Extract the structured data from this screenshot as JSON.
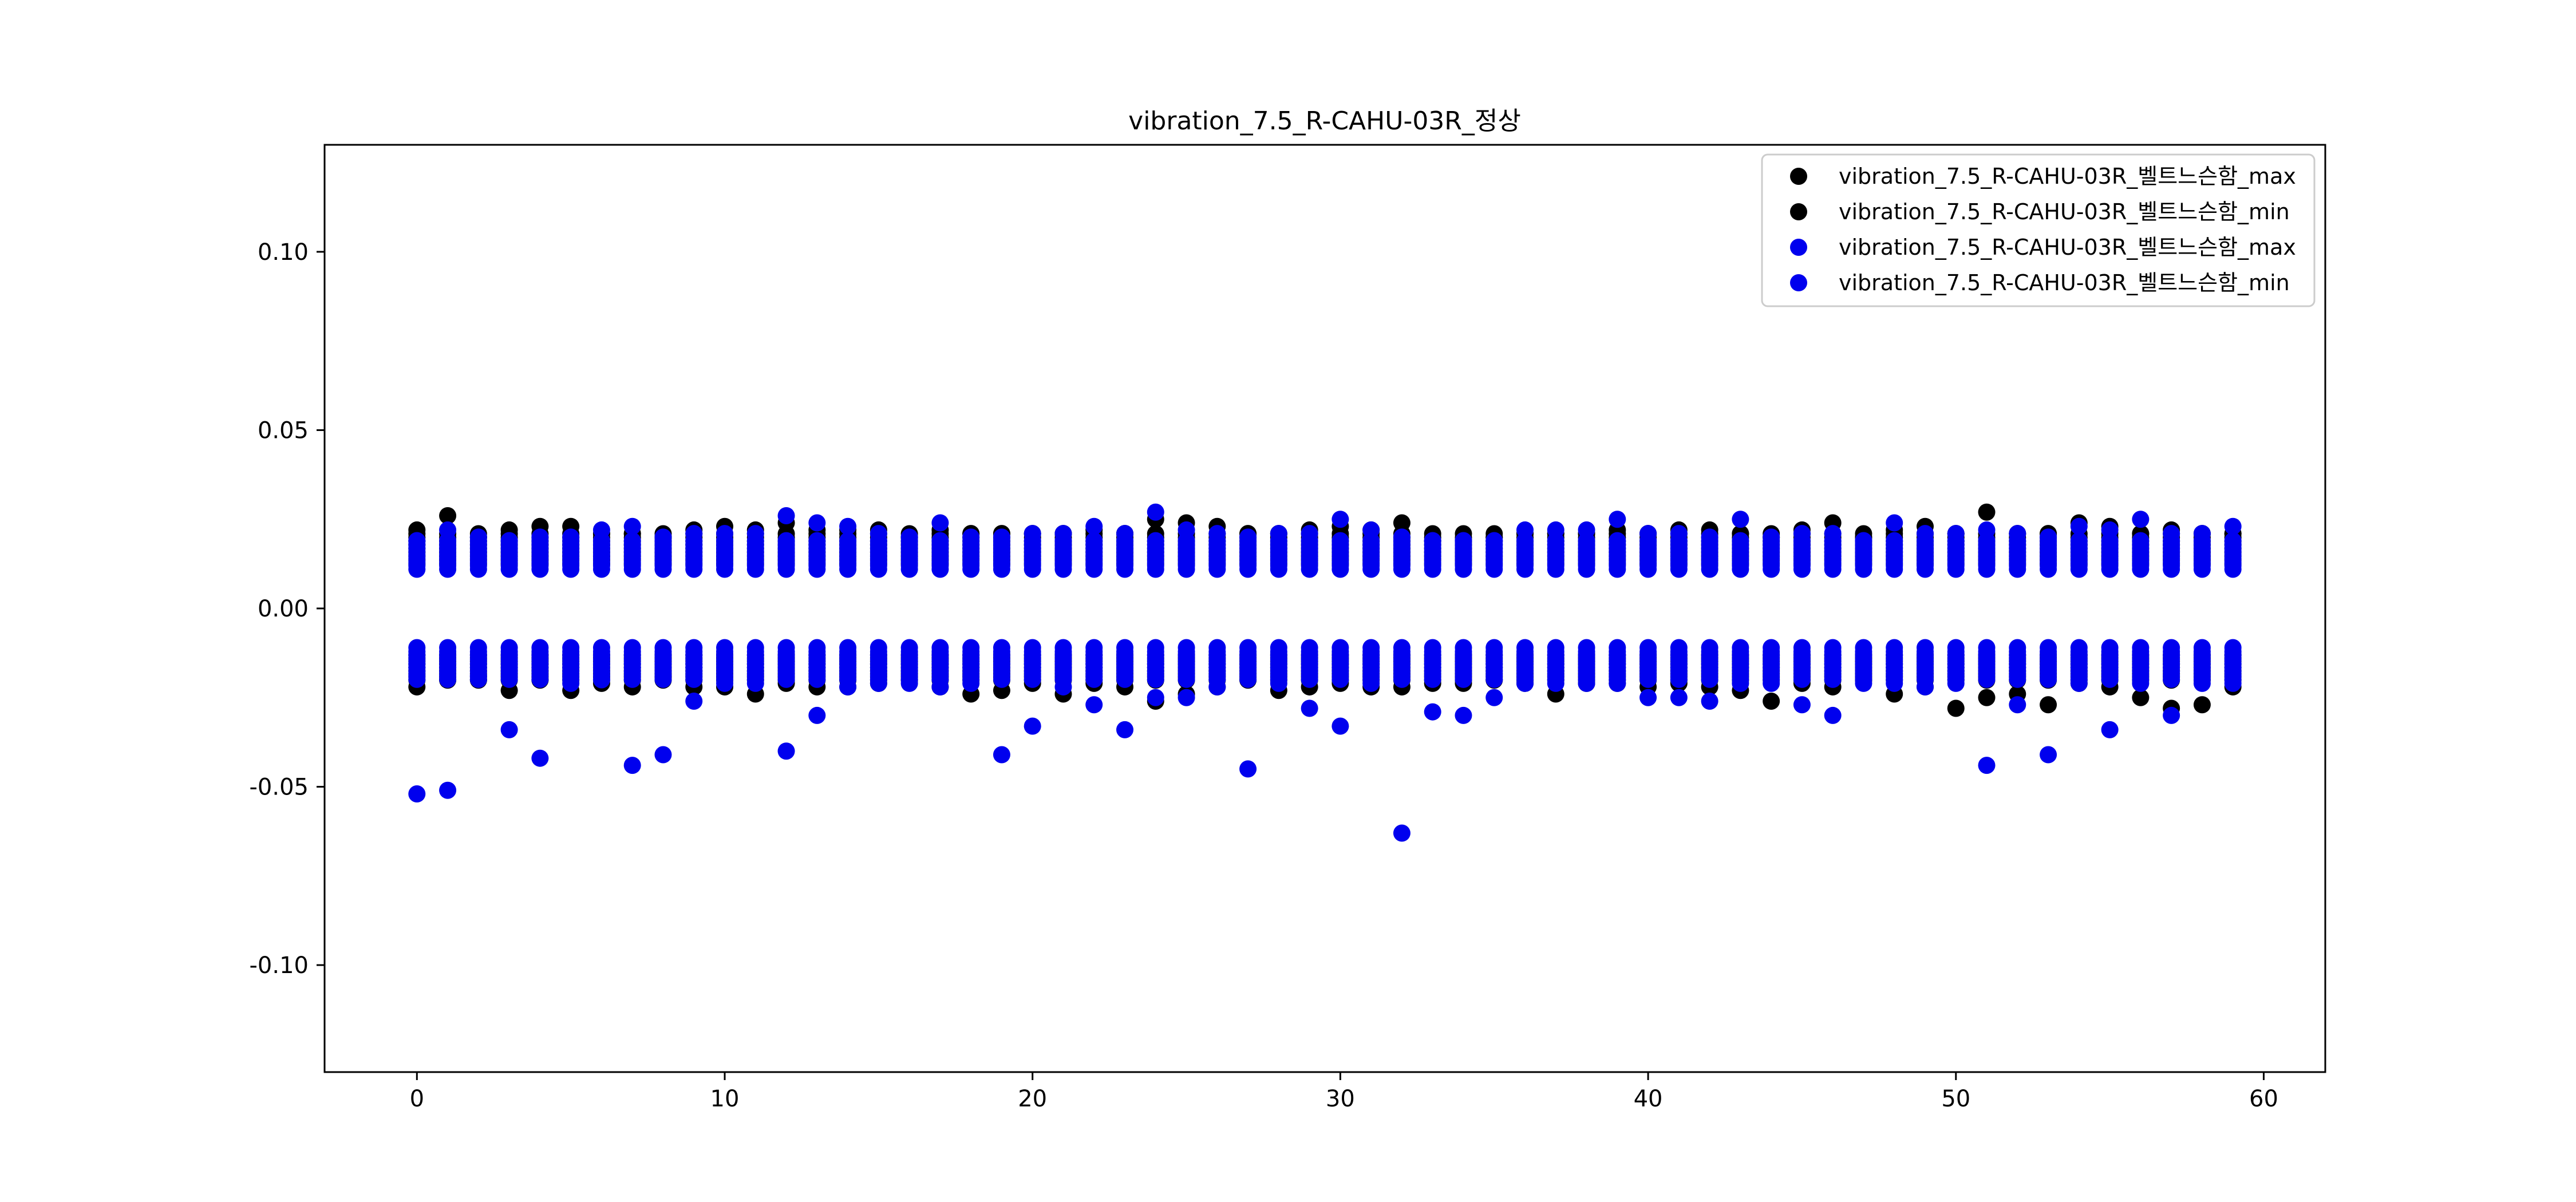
{
  "chart_data": {
    "type": "scatter",
    "title": "vibration_7.5_R-CAHU-03R_정상",
    "xlabel": "",
    "ylabel": "",
    "xlim": [
      -3,
      62
    ],
    "ylim": [
      -0.13,
      0.13
    ],
    "xticks": [
      0,
      10,
      20,
      30,
      40,
      50,
      60
    ],
    "yticks": [
      -0.1,
      -0.05,
      0.0,
      0.05,
      0.1
    ],
    "ytick_labels": [
      "-0.10",
      "-0.05",
      "0.00",
      "0.05",
      "0.10"
    ],
    "grid": false,
    "legend_position": "top-right",
    "points_per_x": 10,
    "series": [
      {
        "name": "vibration_7.5_R-CAHU-03R_벨트느슨함_max",
        "color": "#000000",
        "band": [
          0.0125,
          0.022
        ],
        "peaks": [
          0.022,
          0.026,
          0.02,
          0.022,
          0.023,
          0.023,
          0.021,
          0.021,
          0.02,
          0.022,
          0.023,
          0.022,
          0.024,
          0.022,
          0.022,
          0.022,
          0.02,
          0.022,
          0.021,
          0.021,
          0.021,
          0.021,
          0.022,
          0.021,
          0.025,
          0.024,
          0.023,
          0.021,
          0.021,
          0.022,
          0.023,
          0.022,
          0.024,
          0.019,
          0.019,
          0.02,
          0.021,
          0.021,
          0.021,
          0.022,
          0.021,
          0.022,
          0.022,
          0.021,
          0.02,
          0.022,
          0.024,
          0.02,
          0.022,
          0.023,
          0.021,
          0.027,
          0.021,
          0.021,
          0.024,
          0.023,
          0.021,
          0.022,
          0.021,
          0.021
        ]
      },
      {
        "name": "vibration_7.5_R-CAHU-03R_벨트느슨함_min",
        "color": "#000000",
        "band": [
          -0.021,
          -0.013
        ],
        "peaks": [
          -0.022,
          -0.02,
          -0.02,
          -0.023,
          -0.02,
          -0.023,
          -0.021,
          -0.022,
          -0.019,
          -0.022,
          -0.022,
          -0.024,
          -0.021,
          -0.022,
          -0.022,
          -0.021,
          -0.02,
          -0.022,
          -0.024,
          -0.023,
          -0.021,
          -0.024,
          -0.021,
          -0.022,
          -0.026,
          -0.024,
          -0.022,
          -0.02,
          -0.023,
          -0.022,
          -0.021,
          -0.022,
          -0.022,
          -0.021,
          -0.021,
          -0.02,
          -0.021,
          -0.024,
          -0.021,
          -0.021,
          -0.022,
          -0.021,
          -0.022,
          -0.023,
          -0.026,
          -0.021,
          -0.022,
          -0.02,
          -0.024,
          -0.022,
          -0.028,
          -0.025,
          -0.024,
          -0.027,
          -0.021,
          -0.022,
          -0.025,
          -0.028,
          -0.027,
          -0.022
        ]
      },
      {
        "name": "vibration_7.5_R-CAHU-03R_벨트느슨함_max",
        "color": "#0000ee",
        "band": [
          0.011,
          0.02
        ],
        "peaks": [
          0.019,
          0.022,
          0.02,
          0.019,
          0.02,
          0.02,
          0.022,
          0.023,
          0.02,
          0.021,
          0.021,
          0.021,
          0.026,
          0.024,
          0.023,
          0.021,
          0.02,
          0.024,
          0.02,
          0.02,
          0.021,
          0.021,
          0.023,
          0.021,
          0.027,
          0.022,
          0.021,
          0.02,
          0.021,
          0.021,
          0.025,
          0.022,
          0.02,
          0.019,
          0.019,
          0.019,
          0.022,
          0.022,
          0.022,
          0.025,
          0.021,
          0.021,
          0.02,
          0.025,
          0.02,
          0.021,
          0.021,
          0.019,
          0.024,
          0.021,
          0.021,
          0.022,
          0.021,
          0.02,
          0.023,
          0.022,
          0.025,
          0.021,
          0.021,
          0.023
        ]
      },
      {
        "name": "vibration_7.5_R-CAHU-03R_벨트느슨함_min",
        "color": "#0000ee",
        "band": [
          -0.021,
          -0.011
        ],
        "peaks": [
          -0.052,
          -0.051,
          -0.019,
          -0.034,
          -0.042,
          -0.021,
          -0.02,
          -0.044,
          -0.041,
          -0.026,
          -0.021,
          -0.021,
          -0.04,
          -0.03,
          -0.022,
          -0.021,
          -0.021,
          -0.022,
          -0.021,
          -0.041,
          -0.033,
          -0.022,
          -0.027,
          -0.034,
          -0.025,
          -0.025,
          -0.022,
          -0.045,
          -0.021,
          -0.028,
          -0.033,
          -0.021,
          -0.063,
          -0.029,
          -0.03,
          -0.025,
          -0.021,
          -0.021,
          -0.021,
          -0.021,
          -0.025,
          -0.025,
          -0.026,
          -0.021,
          -0.021,
          -0.027,
          -0.03,
          -0.021,
          -0.021,
          -0.022,
          -0.021,
          -0.044,
          -0.027,
          -0.041,
          -0.021,
          -0.034,
          -0.021,
          -0.03,
          -0.021,
          -0.021
        ]
      }
    ]
  }
}
